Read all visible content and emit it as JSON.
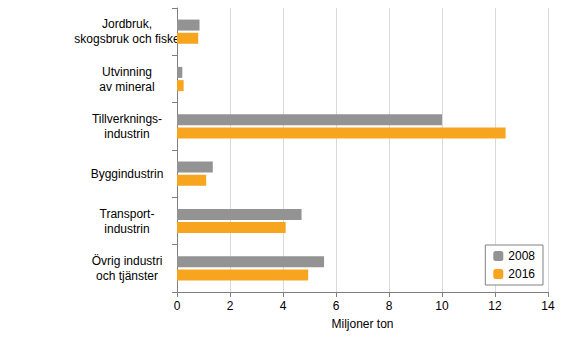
{
  "chart_data": {
    "type": "bar",
    "orientation": "horizontal",
    "categories": [
      "Jordbruk,\nskogsbruk och fiske",
      "Utvinning\nav mineral",
      "Tillverknings-\nindustrin",
      "Byggindustrin",
      "Transport-\nindustrin",
      "Övrig industri\noch tjänster"
    ],
    "series": [
      {
        "name": "2008",
        "color": "#939393",
        "values": [
          0.85,
          0.2,
          10.0,
          1.35,
          4.7,
          5.55
        ]
      },
      {
        "name": "2016",
        "color": "#f7a51e",
        "values": [
          0.8,
          0.25,
          12.4,
          1.1,
          4.1,
          4.95
        ]
      }
    ],
    "x_label": "Miljoner ton",
    "xlim": [
      0,
      14
    ],
    "xticks": [
      0,
      2,
      4,
      6,
      8,
      10,
      12,
      14
    ],
    "grid": true,
    "legend": "lower right"
  }
}
